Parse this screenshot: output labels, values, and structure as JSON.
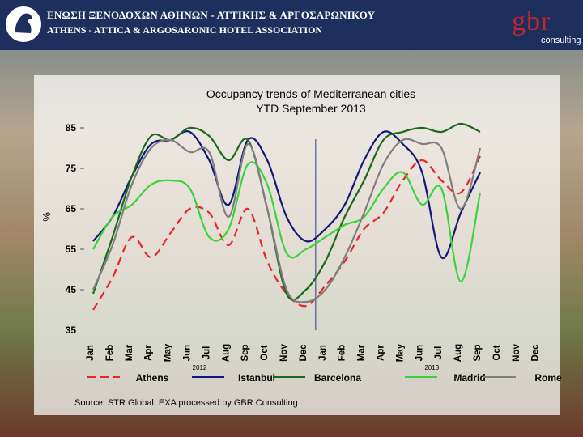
{
  "header": {
    "assoc_name_greek": "ΕΝΩΣΗ ΞΕΝΟΔΟΧΩΝ ΑΘΗΝΩΝ - ΑΤΤΙΚΗΣ & ΑΡΓΟΣΑΡΩΝΙΚΟΥ",
    "assoc_name_english": "ATHENS - ATTICA & ARGOSARONIC HOTEL ASSOCIATION",
    "brand_logo_text": "gbr",
    "brand_logo_sub": "consulting",
    "header_color": "#1d2f5c",
    "brand_color": "#c0262d"
  },
  "source_note": "Source: STR Global, EXA processed by GBR Consulting",
  "chart_data": {
    "type": "line",
    "title_line1": "Occupancy trends of Mediterranean cities",
    "title_line2": "YTD September 2013",
    "ylabel": "%",
    "ylim": [
      35,
      85
    ],
    "yticks": [
      35,
      45,
      55,
      65,
      75,
      85
    ],
    "categories": [
      "Jan",
      "Feb",
      "Mar",
      "Apr",
      "May",
      "Jun",
      "Jul",
      "Aug",
      "Sep",
      "Oct",
      "Nov",
      "Dec",
      "Jan",
      "Feb",
      "Mar",
      "Apr",
      "May",
      "Jun",
      "Jul",
      "Aug",
      "Sep",
      "Oct",
      "Nov",
      "Dec"
    ],
    "year_labels": [
      {
        "label": "2012",
        "from": 0,
        "to": 11
      },
      {
        "label": "2013",
        "from": 12,
        "to": 23
      }
    ],
    "series": [
      {
        "name": "Athens",
        "color": "#e8262a",
        "dash": true,
        "values": [
          40,
          48,
          58,
          53,
          59,
          65,
          64,
          56,
          65,
          52,
          44,
          41,
          46,
          52,
          60,
          64,
          72,
          77,
          72,
          69,
          78,
          null,
          null,
          null
        ]
      },
      {
        "name": "Istanbul",
        "color": "#101878",
        "dash": false,
        "values": [
          57,
          63,
          73,
          81,
          82,
          84,
          77,
          66,
          82,
          77,
          63,
          57,
          60,
          66,
          77,
          84,
          81,
          74,
          53,
          64,
          74,
          null,
          null,
          null
        ]
      },
      {
        "name": "Barcelona",
        "color": "#1a6a1a",
        "dash": false,
        "values": [
          44,
          58,
          73,
          83,
          82,
          85,
          83,
          77,
          82,
          65,
          44,
          45,
          52,
          63,
          72,
          82,
          84,
          85,
          84,
          86,
          84,
          null,
          null,
          null
        ]
      },
      {
        "name": "Madrid",
        "color": "#39d43a",
        "dash": false,
        "values": [
          55,
          63,
          66,
          71,
          72,
          70,
          58,
          60,
          76,
          71,
          54,
          55,
          58,
          61,
          63,
          70,
          74,
          66,
          70,
          47,
          69,
          null,
          null,
          null
        ]
      },
      {
        "name": "Rome",
        "color": "#7f7f7f",
        "dash": false,
        "values": [
          45,
          56,
          71,
          80,
          82,
          79,
          79,
          63,
          81,
          65,
          45,
          42,
          45,
          53,
          64,
          76,
          82,
          81,
          80,
          65,
          80,
          null,
          null,
          null
        ]
      }
    ],
    "legend_position": "bottom",
    "grid": false
  }
}
